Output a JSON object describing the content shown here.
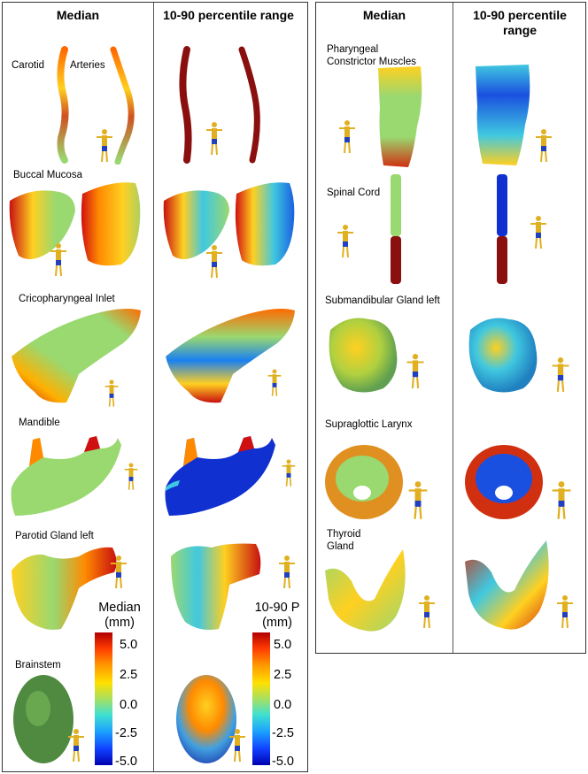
{
  "left_panel": {
    "headers": {
      "median": "Median",
      "range": "10-90 percentile range"
    },
    "structures": [
      {
        "label": "Carotid",
        "label2": "Arteries"
      },
      {
        "label": "Buccal Mucosa"
      },
      {
        "label": "Cricopharyngeal Inlet"
      },
      {
        "label": "Mandible"
      },
      {
        "label": "Parotid Gland left"
      },
      {
        "label": "Brainstem"
      }
    ],
    "colorbar_median": {
      "title": "Median (mm)",
      "ticks": [
        "5.0",
        "2.5",
        "0.0",
        "-2.5",
        "-5.0"
      ]
    },
    "colorbar_range": {
      "title": "10-90 P (mm)",
      "ticks": [
        "5.0",
        "2.5",
        "0.0",
        "-2.5",
        "-5.0"
      ]
    }
  },
  "right_panel": {
    "headers": {
      "median": "Median",
      "range": "10-90 percentile range"
    },
    "structures": [
      {
        "label": "Pharyngeal Constrictor Muscles"
      },
      {
        "label": "Spinal Cord"
      },
      {
        "label": "Submandibular Gland left"
      },
      {
        "label": "Supraglottic Larynx"
      },
      {
        "label": "Thyroid Gland"
      }
    ]
  },
  "colors": {
    "dark_red": "#8a1010",
    "green": "#9ad870",
    "blue": "#1030d0",
    "cyan": "#40c8e0",
    "yellow": "#f0d020",
    "orange": "#ff7a00"
  }
}
